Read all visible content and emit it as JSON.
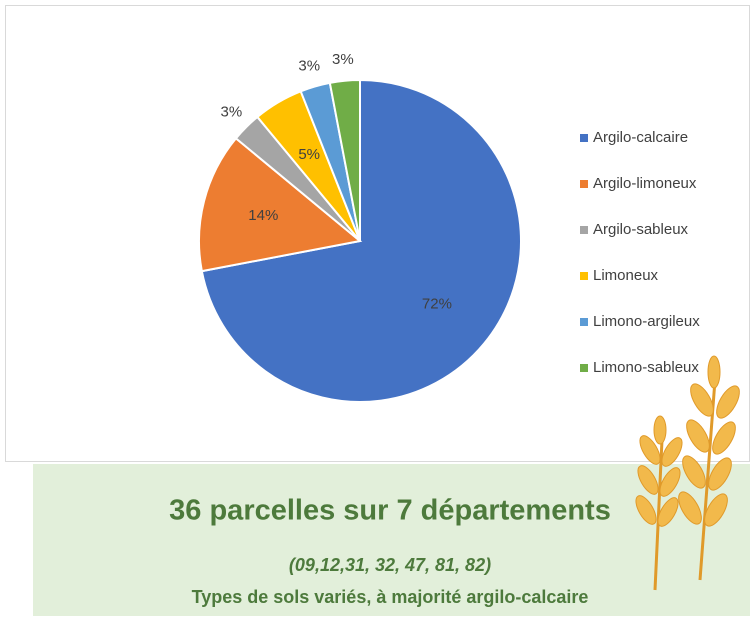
{
  "chart_data": {
    "type": "pie",
    "categories": [
      "Argilo-calcaire",
      "Argilo-limoneux",
      "Argilo-sableux",
      "Limoneux",
      "Limono-argileux",
      "Limono-sableux"
    ],
    "values": [
      72,
      14,
      3,
      5,
      3,
      3
    ],
    "value_labels": [
      "72%",
      "14%",
      "3%",
      "5%",
      "3%",
      "3%"
    ],
    "colors": [
      "#4472c4",
      "#ed7d31",
      "#a5a5a5",
      "#ffc000",
      "#5b9bd5",
      "#70ad47"
    ],
    "legend": "right"
  },
  "caption": {
    "title": "36 parcelles sur 7 départements",
    "subtitle": "(09,12,31, 32, 47, 81, 82)",
    "note": "Types de sols variés, à majorité argilo-calcaire"
  }
}
